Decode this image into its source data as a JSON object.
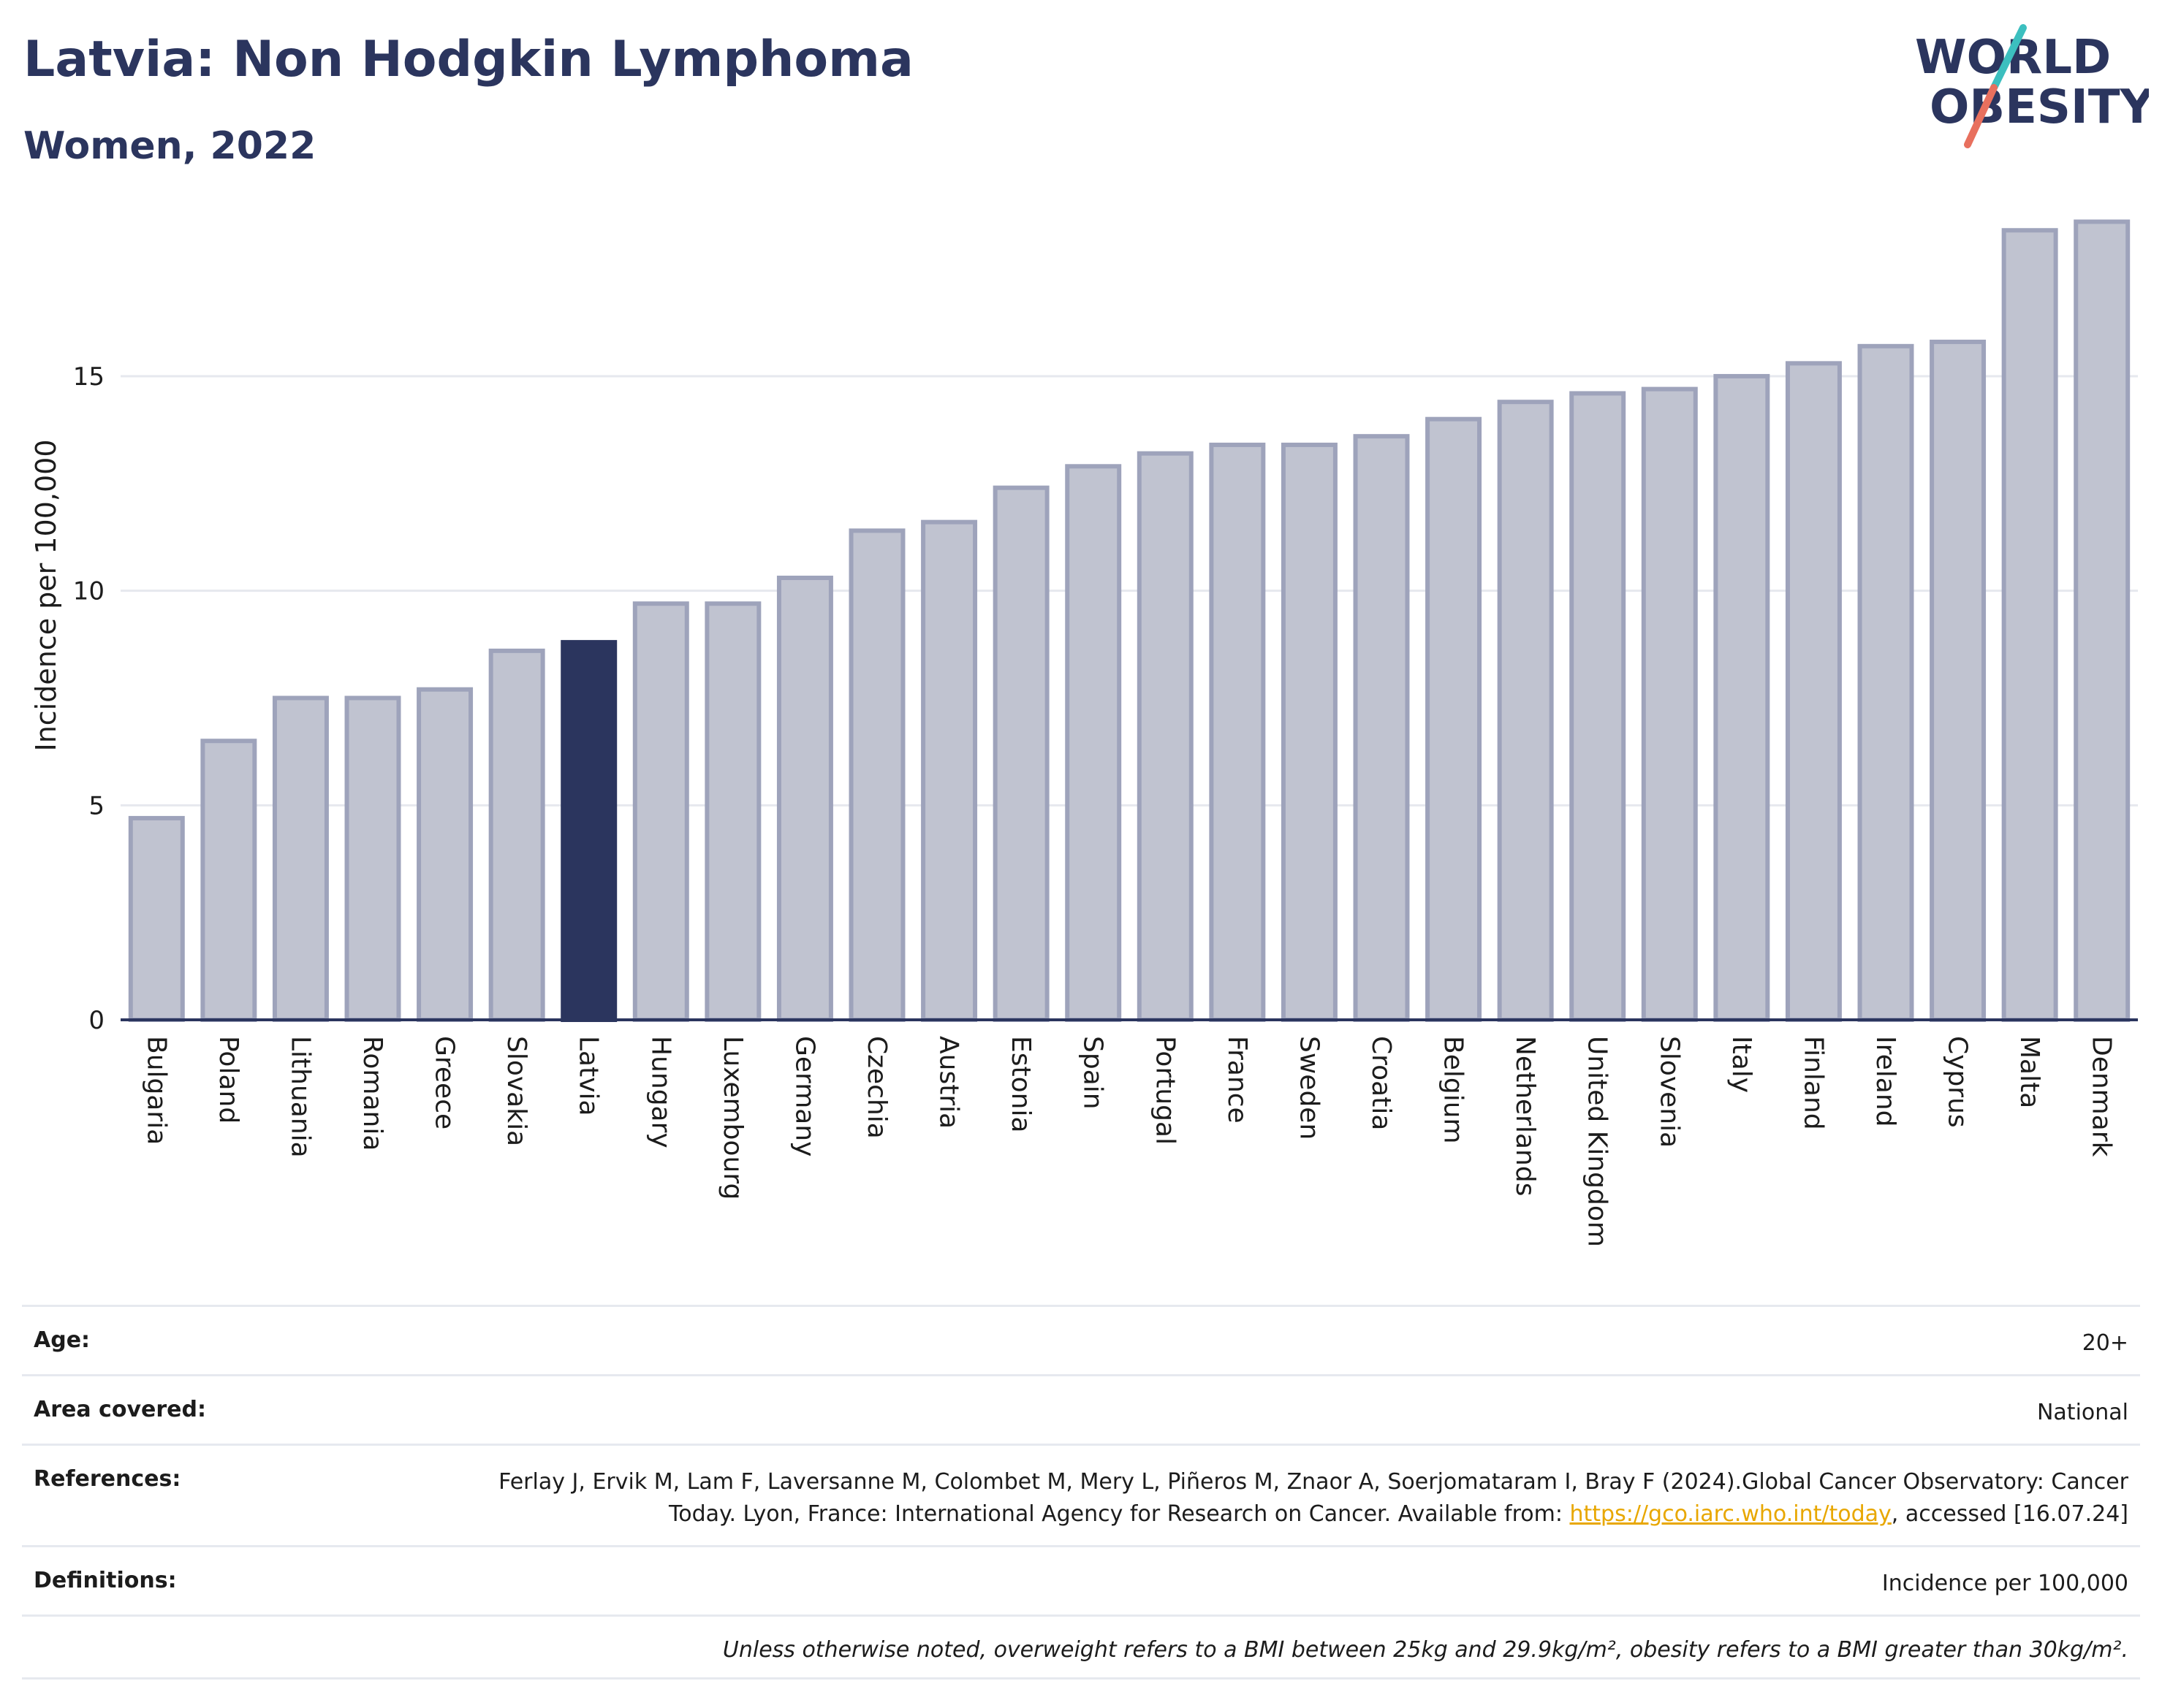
{
  "header": {
    "title": "Latvia: Non Hodgkin Lymphoma",
    "subtitle": "Women, 2022",
    "logo_line1": "WORLD",
    "logo_line2": "OBESITY"
  },
  "colors": {
    "title": "#2b355e",
    "bar_default": "#c0c3d0",
    "bar_default_stroke": "#9ea3bb",
    "bar_highlight": "#2b355e",
    "logo_teal": "#3cbfbf",
    "logo_coral": "#e8705e",
    "link": "#e8a700"
  },
  "chart_data": {
    "type": "bar",
    "ylabel": "Incidence per 100,000",
    "xlabel": "",
    "ylim": [
      0,
      19
    ],
    "yticks": [
      0,
      5,
      10,
      15
    ],
    "grid": true,
    "highlight": "Latvia",
    "categories": [
      "Bulgaria",
      "Poland",
      "Lithuania",
      "Romania",
      "Greece",
      "Slovakia",
      "Latvia",
      "Hungary",
      "Luxembourg",
      "Germany",
      "Czechia",
      "Austria",
      "Estonia",
      "Spain",
      "Portugal",
      "France",
      "Sweden",
      "Croatia",
      "Belgium",
      "Netherlands",
      "United Kingdom",
      "Slovenia",
      "Italy",
      "Finland",
      "Ireland",
      "Cyprus",
      "Malta",
      "Denmark"
    ],
    "values": [
      4.7,
      6.5,
      7.5,
      7.5,
      7.7,
      8.6,
      8.8,
      9.7,
      9.7,
      10.3,
      11.4,
      11.6,
      12.4,
      12.9,
      13.2,
      13.4,
      13.4,
      13.6,
      14.0,
      14.4,
      14.6,
      14.7,
      15.0,
      15.3,
      15.7,
      15.8,
      18.4,
      18.6
    ]
  },
  "metadata": {
    "age_label": "Age:",
    "age_value": "20+",
    "area_label": "Area covered:",
    "area_value": "National",
    "references_label": "References:",
    "references_text_before": "Ferlay J, Ervik M, Lam F, Laversanne M, Colombet M, Mery L, Piñeros M, Znaor A, Soerjomataram I, Bray F (2024).Global Cancer Observatory: Cancer Today. Lyon, France: International Agency for Research on Cancer. Available from: ",
    "references_link": "https://gco.iarc.who.int/today",
    "references_text_after": ", accessed [16.07.24]",
    "definitions_label": "Definitions:",
    "definitions_value": "Incidence per 100,000",
    "note": "Unless otherwise noted, overweight refers to a BMI between 25kg and 29.9kg/m², obesity refers to a BMI greater than 30kg/m²."
  }
}
